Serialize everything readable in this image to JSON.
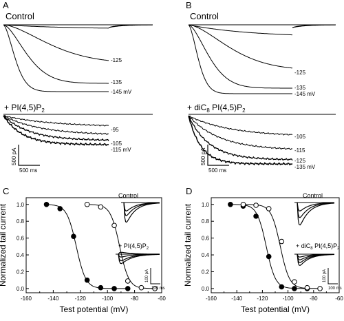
{
  "figure": {
    "panels": [
      {
        "letter": "A",
        "control_label": "Control",
        "control_labels": [
          "-125",
          "-135",
          "-145 mV"
        ],
        "treatment_label": "+ PI(4,5)P",
        "treatment_sub": "2",
        "treatment_labels": [
          "-95",
          "-105",
          "-115 mV"
        ],
        "scalebar_y": "500 pA",
        "scalebar_x": "500 ms"
      },
      {
        "letter": "B",
        "control_label": "Control",
        "control_labels": [
          "-125",
          "-135",
          "-145 mV"
        ],
        "treatment_label_pre": "+ diC",
        "treatment_label_pre_sub": "8",
        "treatment_label": " PI(4,5)P",
        "treatment_sub": "2",
        "treatment_labels": [
          "-105",
          "-115",
          "-125",
          "-135 mV"
        ],
        "scalebar_y": "500 pA",
        "scalebar_x": "500 ms"
      }
    ],
    "inset_labels": {
      "C_control": "Control",
      "C_treatment": "+ PI(4,5)P",
      "C_treatment_sub": "2",
      "C_scale_y": "100 pA",
      "C_scale_x": "100 ms",
      "D_control": "Control",
      "D_treatment_pre": "+ diC",
      "D_treatment_pre_sub": "8",
      "D_treatment": " PI(4,5)P",
      "D_treatment_sub": "2",
      "D_scale_y": "100 pA",
      "D_scale_x": "100 ms"
    }
  },
  "chart_data": [
    {
      "panel": "C",
      "type": "scatter",
      "xlabel": "Test potential (mV)",
      "ylabel": "Normalized tail current",
      "xlim": [
        -160,
        -60
      ],
      "ylim": [
        -0.05,
        1.08
      ],
      "xticks": [
        -160,
        -140,
        -120,
        -100,
        -80,
        -60
      ],
      "yticks": [
        0.0,
        0.2,
        0.4,
        0.6,
        0.8,
        1.0
      ],
      "series": [
        {
          "marker": "filled-circle",
          "fit_v_half": -123,
          "fit_slope": 3.5,
          "x": [
            -145,
            -135,
            -125,
            -115,
            -105,
            -95,
            -85
          ],
          "y": [
            1.0,
            0.95,
            0.62,
            0.1,
            0.01,
            0.0,
            0.0
          ]
        },
        {
          "marker": "open-circle",
          "fit_v_half": -91,
          "fit_slope": 3.4,
          "x": [
            -115,
            -105,
            -95,
            -85,
            -75,
            -65
          ],
          "y": [
            1.0,
            0.97,
            0.75,
            0.09,
            0.01,
            0.0
          ]
        }
      ]
    },
    {
      "panel": "D",
      "type": "scatter",
      "xlabel": "Test potential (mV)",
      "ylabel": "Normalized tail current",
      "xlim": [
        -160,
        -60
      ],
      "ylim": [
        -0.05,
        1.08
      ],
      "xticks": [
        -160,
        -140,
        -120,
        -100,
        -80,
        -60
      ],
      "yticks": [
        0.0,
        0.2,
        0.4,
        0.6,
        0.8,
        1.0
      ],
      "series": [
        {
          "marker": "filled-circle",
          "fit_v_half": -117,
          "fit_slope": 3.6,
          "x": [
            -145,
            -135,
            -125,
            -115,
            -105,
            -95,
            -85
          ],
          "y": [
            1.0,
            0.98,
            0.86,
            0.38,
            0.02,
            0.0,
            0.0
          ]
        },
        {
          "marker": "open-circle",
          "fit_v_half": -106,
          "fit_slope": 3.6,
          "x": [
            -135,
            -125,
            -115,
            -105,
            -95,
            -85,
            -75
          ],
          "y": [
            1.0,
            0.99,
            0.95,
            0.56,
            0.08,
            0.01,
            0.0
          ]
        }
      ]
    }
  ]
}
